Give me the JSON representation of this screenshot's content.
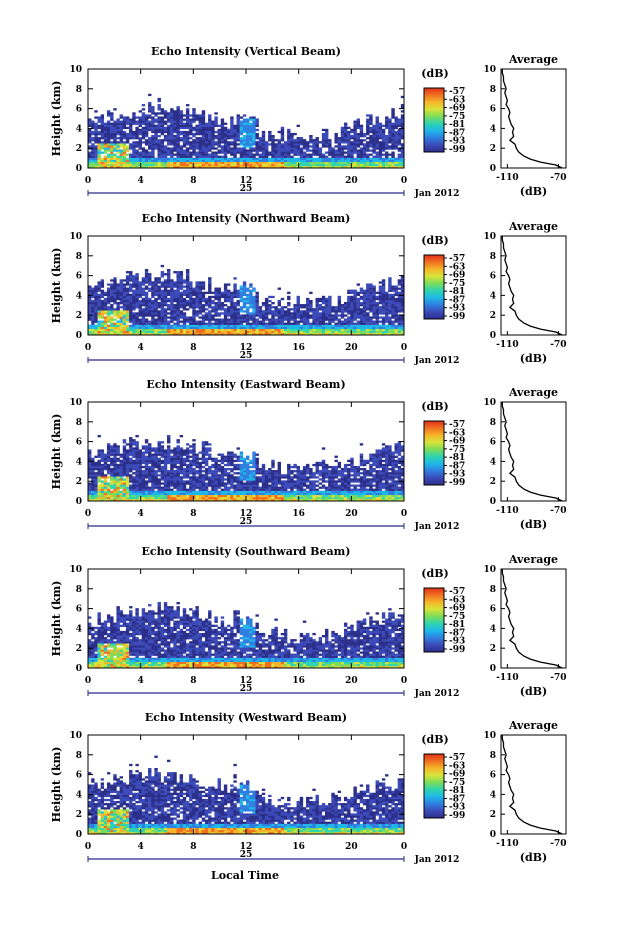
{
  "figure": {
    "xlabel": "Local Time",
    "ylabel": "Height (km)",
    "unit_label": "(dB)",
    "date_label": "Jan 2012",
    "day_label": "25",
    "avg_title": "Average",
    "avg_xlabel": "(dB)"
  },
  "chart_data": [
    {
      "type": "heatmap",
      "title": "Echo Intensity (Vertical Beam)",
      "beam": "vertical",
      "x_ticks": [
        "0",
        "4",
        "8",
        "12",
        "16",
        "20",
        "0"
      ],
      "y_ticks": [
        "0",
        "2",
        "4",
        "6",
        "8",
        "10"
      ],
      "xlim": [
        0,
        24
      ],
      "ylim": [
        0,
        10
      ],
      "colorbar": {
        "ticks": [
          "-57",
          "-63",
          "-69",
          "-75",
          "-81",
          "-87",
          "-93",
          "-99"
        ]
      },
      "average": {
        "x_ticks": [
          "-110",
          "-70"
        ],
        "y_ticks": [
          "0",
          "2",
          "4",
          "6",
          "8",
          "10"
        ],
        "xlim": [
          -115,
          -64
        ]
      }
    },
    {
      "type": "heatmap",
      "title": "Echo Intensity (Northward Beam)",
      "beam": "north",
      "x_ticks": [
        "0",
        "4",
        "8",
        "12",
        "16",
        "20",
        "0"
      ],
      "y_ticks": [
        "0",
        "2",
        "4",
        "6",
        "8",
        "10"
      ],
      "xlim": [
        0,
        24
      ],
      "ylim": [
        0,
        10
      ],
      "colorbar": {
        "ticks": [
          "-57",
          "-63",
          "-69",
          "-75",
          "-81",
          "-87",
          "-93",
          "-99"
        ]
      },
      "average": {
        "x_ticks": [
          "-110",
          "-70"
        ],
        "y_ticks": [
          "0",
          "2",
          "4",
          "6",
          "8",
          "10"
        ],
        "xlim": [
          -115,
          -64
        ]
      }
    },
    {
      "type": "heatmap",
      "title": "Echo Intensity (Eastward Beam)",
      "beam": "east",
      "x_ticks": [
        "0",
        "4",
        "8",
        "12",
        "16",
        "20",
        "0"
      ],
      "y_ticks": [
        "0",
        "2",
        "4",
        "6",
        "8",
        "10"
      ],
      "xlim": [
        0,
        24
      ],
      "ylim": [
        0,
        10
      ],
      "colorbar": {
        "ticks": [
          "-57",
          "-63",
          "-69",
          "-75",
          "-81",
          "-87",
          "-93",
          "-99"
        ]
      },
      "average": {
        "x_ticks": [
          "-110",
          "-70"
        ],
        "y_ticks": [
          "0",
          "2",
          "4",
          "6",
          "8",
          "10"
        ],
        "xlim": [
          -115,
          -64
        ]
      }
    },
    {
      "type": "heatmap",
      "title": "Echo Intensity (Southward Beam)",
      "beam": "south",
      "x_ticks": [
        "0",
        "4",
        "8",
        "12",
        "16",
        "20",
        "0"
      ],
      "y_ticks": [
        "0",
        "2",
        "4",
        "6",
        "8",
        "10"
      ],
      "xlim": [
        0,
        24
      ],
      "ylim": [
        0,
        10
      ],
      "colorbar": {
        "ticks": [
          "-57",
          "-63",
          "-69",
          "-75",
          "-81",
          "-87",
          "-93",
          "-99"
        ]
      },
      "average": {
        "x_ticks": [
          "-110",
          "-70"
        ],
        "y_ticks": [
          "0",
          "2",
          "4",
          "6",
          "8",
          "10"
        ],
        "xlim": [
          -115,
          -64
        ]
      }
    },
    {
      "type": "heatmap",
      "title": "Echo Intensity (Westward Beam)",
      "beam": "west",
      "x_ticks": [
        "0",
        "4",
        "8",
        "12",
        "16",
        "20",
        "0"
      ],
      "y_ticks": [
        "0",
        "2",
        "4",
        "6",
        "8",
        "10"
      ],
      "xlim": [
        0,
        24
      ],
      "ylim": [
        0,
        10
      ],
      "colorbar": {
        "ticks": [
          "-57",
          "-63",
          "-69",
          "-75",
          "-81",
          "-87",
          "-93",
          "-99"
        ]
      },
      "average": {
        "x_ticks": [
          "-110",
          "-70"
        ],
        "y_ticks": [
          "0",
          "2",
          "4",
          "6",
          "8",
          "10"
        ],
        "xlim": [
          -115,
          -64
        ]
      }
    }
  ],
  "average_profile": {
    "height_km": [
      0.0,
      0.3,
      0.6,
      0.9,
      1.2,
      1.6,
      2.0,
      2.4,
      2.8,
      3.2,
      3.6,
      4.0,
      4.4,
      4.8,
      5.2,
      5.6,
      6.0,
      6.4,
      6.8,
      7.2,
      7.6,
      8.0,
      8.4,
      8.8,
      9.2,
      9.6,
      10.0
    ],
    "echo_db": [
      -67,
      -72,
      -84,
      -92,
      -97,
      -101,
      -103,
      -104,
      -108,
      -105,
      -106,
      -105,
      -107,
      -108,
      -109,
      -108,
      -109,
      -111,
      -110,
      -111,
      -112,
      -111,
      -112,
      -113,
      -113,
      -114,
      -114
    ]
  },
  "colors": {
    "colormap": [
      "#2b2f8a",
      "#3b4ab8",
      "#2f7fe0",
      "#1fb7e8",
      "#2fd4b0",
      "#7ddc5a",
      "#d8e43a",
      "#f5b62a",
      "#f07020",
      "#e03018"
    ],
    "missing": "#ffffff"
  }
}
